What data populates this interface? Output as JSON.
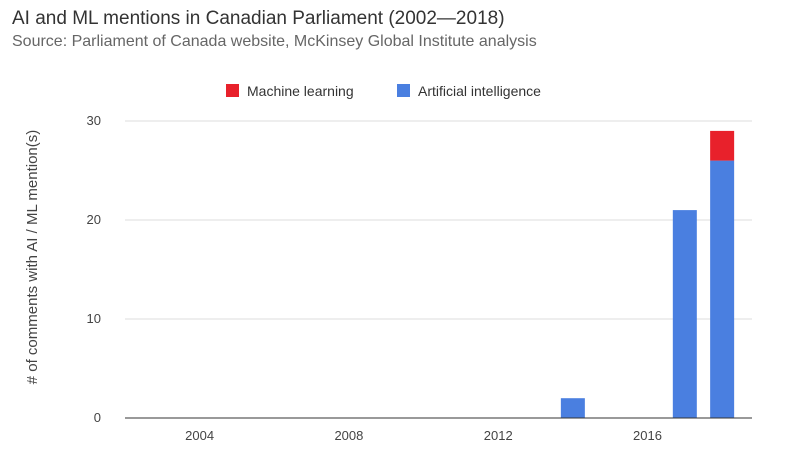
{
  "chart_data": {
    "type": "bar",
    "stacked": true,
    "title": "AI and ML mentions in Canadian Parliament (2002—2018)",
    "subtitle": "Source: Parliament of Canada website, McKinsey Global Institute analysis",
    "xlabel": "",
    "ylabel": "# of comments with AI / ML mention(s)",
    "x": [
      2014,
      2017,
      2018
    ],
    "xlim": [
      2002,
      2018.8
    ],
    "xticks": [
      2004,
      2008,
      2012,
      2016
    ],
    "ylim": [
      0,
      30
    ],
    "yticks": [
      0,
      10,
      20,
      30
    ],
    "grid": true,
    "legend_position": "top",
    "series": [
      {
        "name": "Artificial intelligence",
        "color": "#4a7fe0",
        "values": [
          2,
          21,
          26
        ]
      },
      {
        "name": "Machine learning",
        "color": "#e8212b",
        "values": [
          0,
          0,
          3
        ]
      }
    ],
    "legend_order": [
      "Machine learning",
      "Artificial intelligence"
    ]
  }
}
